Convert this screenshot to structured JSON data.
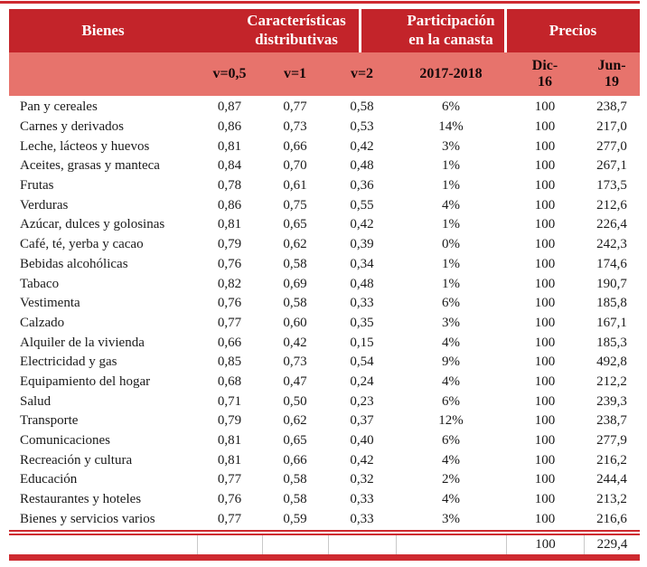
{
  "header": {
    "bienes": "Bienes",
    "caracteristicas": [
      "Características",
      "distributivas"
    ],
    "participacion": [
      "Participación",
      "en la canasta"
    ],
    "precios": "Precios"
  },
  "subheader": {
    "v05": "v=0,5",
    "v1": "v=1",
    "v2": "v=2",
    "period": "2017-2018",
    "dic": [
      "Dic-",
      "16"
    ],
    "jun": [
      "Jun-",
      "19"
    ]
  },
  "colors": {
    "header_red": "#c3242a",
    "band_salmon": "#e7736c",
    "rule_red": "#ce2a30",
    "text": "#1a1a1a"
  },
  "chart_data": {
    "type": "table",
    "columns": [
      "Bienes",
      "v=0,5",
      "v=1",
      "v=2",
      "2017-2018",
      "Dic-16",
      "Jun-19"
    ],
    "rows": [
      {
        "label": "Pan y cereales",
        "v05": "0,87",
        "v1": "0,77",
        "v2": "0,58",
        "share": "6%",
        "dic16": "100",
        "jun19": "238,7"
      },
      {
        "label": "Carnes y derivados",
        "v05": "0,86",
        "v1": "0,73",
        "v2": "0,53",
        "share": "14%",
        "dic16": "100",
        "jun19": "217,0"
      },
      {
        "label": "Leche, lácteos y huevos",
        "v05": "0,81",
        "v1": "0,66",
        "v2": "0,42",
        "share": "3%",
        "dic16": "100",
        "jun19": "277,0"
      },
      {
        "label": "Aceites, grasas y manteca",
        "v05": "0,84",
        "v1": "0,70",
        "v2": "0,48",
        "share": "1%",
        "dic16": "100",
        "jun19": "267,1"
      },
      {
        "label": "Frutas",
        "v05": "0,78",
        "v1": "0,61",
        "v2": "0,36",
        "share": "1%",
        "dic16": "100",
        "jun19": "173,5"
      },
      {
        "label": "Verduras",
        "v05": "0,86",
        "v1": "0,75",
        "v2": "0,55",
        "share": "4%",
        "dic16": "100",
        "jun19": "212,6"
      },
      {
        "label": "Azúcar, dulces y golosinas",
        "v05": "0,81",
        "v1": "0,65",
        "v2": "0,42",
        "share": "1%",
        "dic16": "100",
        "jun19": "226,4"
      },
      {
        "label": "Café, té, yerba y cacao",
        "v05": "0,79",
        "v1": "0,62",
        "v2": "0,39",
        "share": "0%",
        "dic16": "100",
        "jun19": "242,3"
      },
      {
        "label": "Bebidas alcohólicas",
        "v05": "0,76",
        "v1": "0,58",
        "v2": "0,34",
        "share": "1%",
        "dic16": "100",
        "jun19": "174,6"
      },
      {
        "label": "Tabaco",
        "v05": "0,82",
        "v1": "0,69",
        "v2": "0,48",
        "share": "1%",
        "dic16": "100",
        "jun19": "190,7"
      },
      {
        "label": "Vestimenta",
        "v05": "0,76",
        "v1": "0,58",
        "v2": "0,33",
        "share": "6%",
        "dic16": "100",
        "jun19": "185,8"
      },
      {
        "label": "Calzado",
        "v05": "0,77",
        "v1": "0,60",
        "v2": "0,35",
        "share": "3%",
        "dic16": "100",
        "jun19": "167,1"
      },
      {
        "label": "Alquiler de la vivienda",
        "v05": "0,66",
        "v1": "0,42",
        "v2": "0,15",
        "share": "4%",
        "dic16": "100",
        "jun19": "185,3"
      },
      {
        "label": "Electricidad y gas",
        "v05": "0,85",
        "v1": "0,73",
        "v2": "0,54",
        "share": "9%",
        "dic16": "100",
        "jun19": "492,8"
      },
      {
        "label": "Equipamiento del hogar",
        "v05": "0,68",
        "v1": "0,47",
        "v2": "0,24",
        "share": "4%",
        "dic16": "100",
        "jun19": "212,2"
      },
      {
        "label": "Salud",
        "v05": "0,71",
        "v1": "0,50",
        "v2": "0,23",
        "share": "6%",
        "dic16": "100",
        "jun19": "239,3"
      },
      {
        "label": "Transporte",
        "v05": "0,79",
        "v1": "0,62",
        "v2": "0,37",
        "share": "12%",
        "dic16": "100",
        "jun19": "238,7"
      },
      {
        "label": "Comunicaciones",
        "v05": "0,81",
        "v1": "0,65",
        "v2": "0,40",
        "share": "6%",
        "dic16": "100",
        "jun19": "277,9"
      },
      {
        "label": "Recreación y cultura",
        "v05": "0,81",
        "v1": "0,66",
        "v2": "0,42",
        "share": "4%",
        "dic16": "100",
        "jun19": "216,2"
      },
      {
        "label": "Educación",
        "v05": "0,77",
        "v1": "0,58",
        "v2": "0,32",
        "share": "2%",
        "dic16": "100",
        "jun19": "244,4"
      },
      {
        "label": "Restaurantes y hoteles",
        "v05": "0,76",
        "v1": "0,58",
        "v2": "0,33",
        "share": "4%",
        "dic16": "100",
        "jun19": "213,2"
      },
      {
        "label": "Bienes y servicios varios",
        "v05": "0,77",
        "v1": "0,59",
        "v2": "0,33",
        "share": "3%",
        "dic16": "100",
        "jun19": "216,6"
      }
    ],
    "total": {
      "dic16": "100",
      "jun19": "229,4"
    }
  }
}
